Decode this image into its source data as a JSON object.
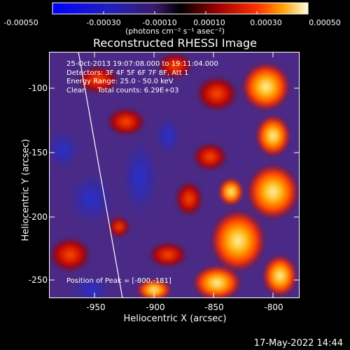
{
  "colorbar": {
    "tick_labels": [
      "-0.00050",
      "-0.00030",
      "-0.00010",
      "0.00010",
      "0.00030",
      "0.00050"
    ],
    "units": "(photons cm⁻² s⁻¹ asec⁻²)"
  },
  "title": "Reconstructed RHESSI Image",
  "info": {
    "time": "25-Oct-2013 19:07:08.000 to 19:11:04.000",
    "detectors": "Detectors: 3F 4F 5F 6F 7F 8F, Att 1",
    "energy": "Energy Range: 25.0 - 50.0 keV",
    "clean": "Clean     Total counts: 6.29E+03"
  },
  "peak": "Position of Peak = [-800,-181]",
  "axes": {
    "xlabel": "Heliocentric X (arcsec)",
    "ylabel": "Heliocentric Y (arcsec)",
    "xticks": [
      "-950",
      "-900",
      "-850",
      "-800"
    ],
    "yticks": [
      "-100",
      "-150",
      "-200",
      "-250"
    ]
  },
  "footer": "17-May-2022 14:44",
  "colors": {
    "background": "#000000",
    "text": "#ffffff"
  }
}
